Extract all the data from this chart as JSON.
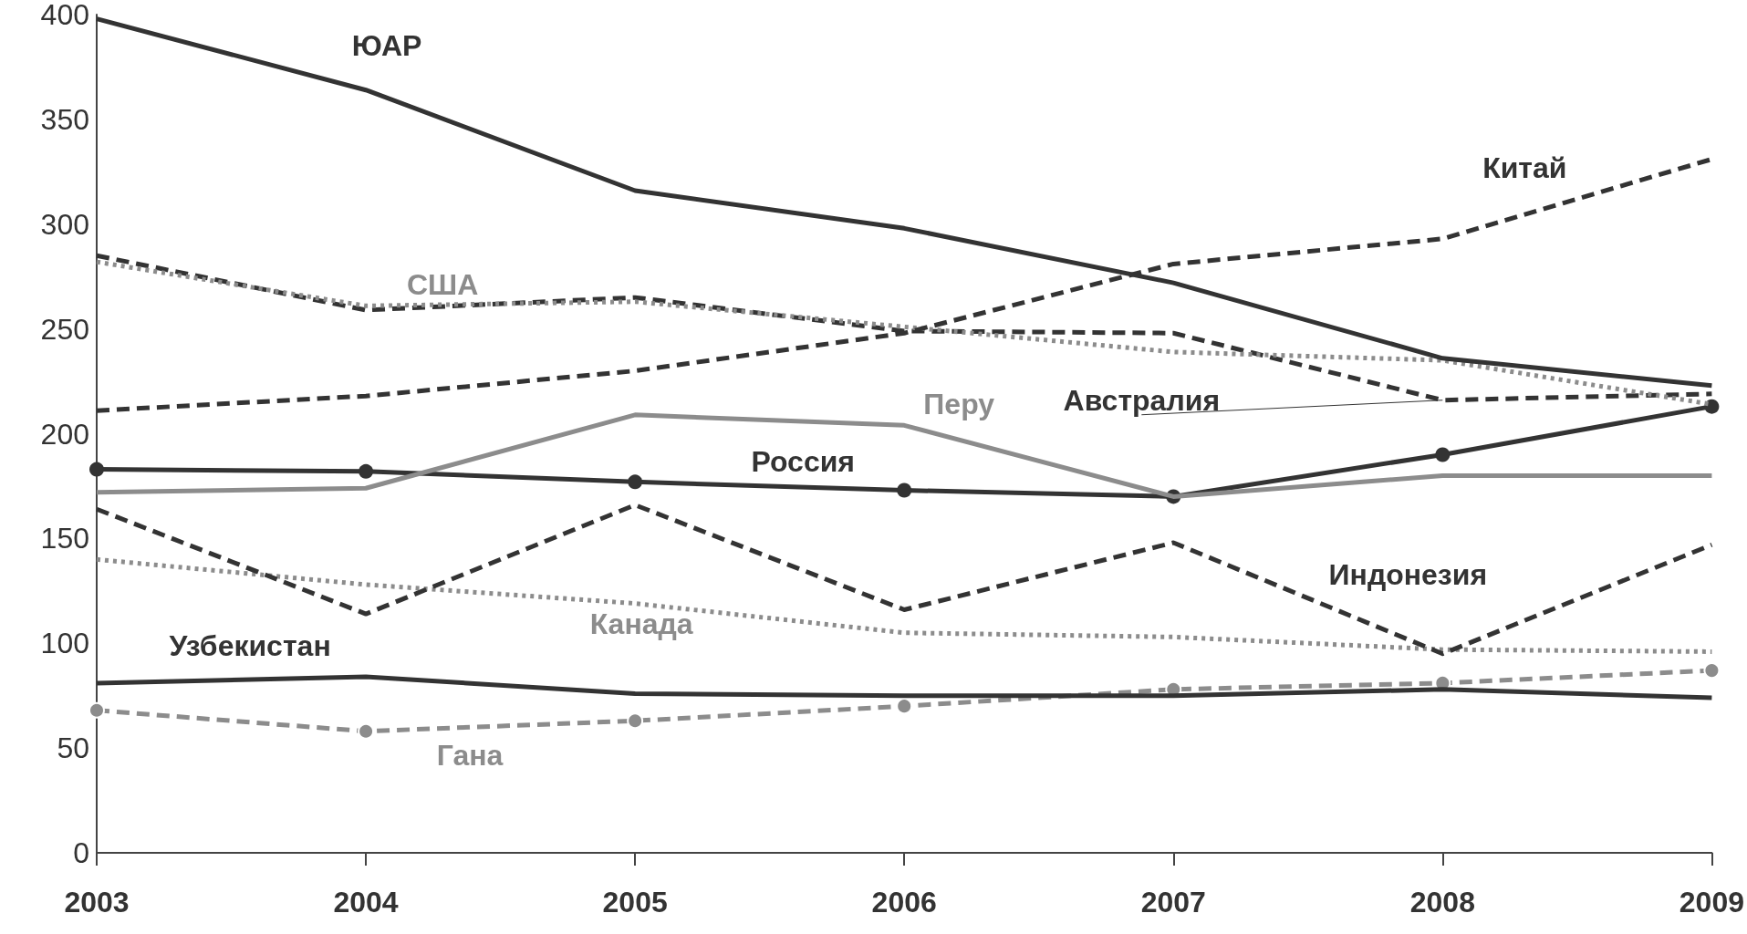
{
  "chart_data": {
    "type": "line",
    "categories": [
      "2003",
      "2004",
      "2005",
      "2006",
      "2007",
      "2008",
      "2009"
    ],
    "ylim": [
      0,
      400
    ],
    "yticks": [
      0,
      50,
      100,
      150,
      200,
      250,
      300,
      350,
      400
    ],
    "grid": false,
    "legend": false,
    "series": [
      {
        "name": "ЮАР",
        "color": "#333333",
        "line_style": "solid",
        "marker": "none",
        "values": [
          398,
          364,
          316,
          298,
          272,
          236,
          223
        ]
      },
      {
        "name": "Китай",
        "color": "#333333",
        "line_style": "dashed",
        "marker": "none",
        "values": [
          211,
          218,
          230,
          248,
          281,
          293,
          331
        ]
      },
      {
        "name": "США",
        "color": "#8c8c8c",
        "line_style": "dotted",
        "marker": "none",
        "values": [
          282,
          261,
          263,
          251,
          239,
          235,
          214
        ]
      },
      {
        "name": "Австралия",
        "color": "#333333",
        "line_style": "dashed",
        "marker": "none",
        "values": [
          285,
          259,
          265,
          249,
          248,
          216,
          219
        ]
      },
      {
        "name": "Перу",
        "color": "#8c8c8c",
        "line_style": "solid",
        "marker": "none",
        "values": [
          172,
          174,
          209,
          204,
          170,
          180,
          180
        ]
      },
      {
        "name": "Россия",
        "color": "#333333",
        "line_style": "solid",
        "marker": "circle",
        "values": [
          183,
          182,
          177,
          173,
          170,
          190,
          213
        ]
      },
      {
        "name": "Индонезия",
        "color": "#333333",
        "line_style": "dashed",
        "marker": "none",
        "values": [
          164,
          114,
          166,
          116,
          148,
          95,
          147
        ]
      },
      {
        "name": "Канада",
        "color": "#8c8c8c",
        "line_style": "dotted",
        "marker": "none",
        "values": [
          140,
          128,
          119,
          105,
          103,
          97,
          96
        ]
      },
      {
        "name": "Узбекистан",
        "color": "#333333",
        "line_style": "solid",
        "marker": "none",
        "values": [
          81,
          84,
          76,
          75,
          75,
          78,
          74
        ]
      },
      {
        "name": "Гана",
        "color": "#8c8c8c",
        "line_style": "dashed",
        "marker": "circle",
        "values": [
          68,
          58,
          63,
          70,
          78,
          81,
          87
        ]
      }
    ]
  }
}
